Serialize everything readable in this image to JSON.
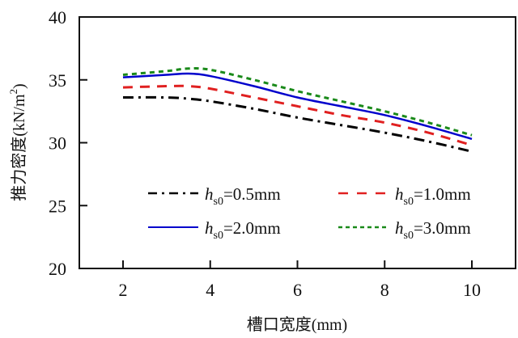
{
  "chart_data": {
    "type": "line",
    "title": "",
    "xlabel": "槽口宽度(mm)",
    "ylabel": "推力密度(kN/m²)",
    "ylabel_main": "推力密度(kN/m",
    "ylabel_sup": "2",
    "ylabel_close": ")",
    "xlim": [
      1.0,
      11.0
    ],
    "ylim": [
      20,
      40
    ],
    "xticks": [
      2,
      4,
      6,
      8,
      10
    ],
    "yticks": [
      20,
      25,
      30,
      35,
      40
    ],
    "grid": false,
    "legend_position": "inside-lower-center",
    "x": [
      2,
      3,
      3.5,
      4,
      5,
      6,
      7,
      8,
      9,
      10
    ],
    "series": [
      {
        "name": "hs0=0.5mm",
        "label_h": "h",
        "label_sub": "s0",
        "label_rest": "=0.5mm",
        "color": "#000000",
        "style": "dashdot",
        "values": [
          33.6,
          33.6,
          33.5,
          33.3,
          32.7,
          32.0,
          31.4,
          30.8,
          30.1,
          29.3
        ]
      },
      {
        "name": "hs0=1.0mm",
        "label_h": "h",
        "label_sub": "s0",
        "label_rest": "=1.0mm",
        "color": "#e02020",
        "style": "dashed",
        "values": [
          34.4,
          34.5,
          34.5,
          34.3,
          33.6,
          32.9,
          32.2,
          31.6,
          30.8,
          29.8
        ]
      },
      {
        "name": "hs0=2.0mm",
        "label_h": "h",
        "label_sub": "s0",
        "label_rest": "=2.0mm",
        "color": "#0000cc",
        "style": "solid",
        "values": [
          35.2,
          35.4,
          35.5,
          35.3,
          34.5,
          33.6,
          32.9,
          32.2,
          31.3,
          30.3
        ]
      },
      {
        "name": "hs0=3.0mm",
        "label_h": "h",
        "label_sub": "s0",
        "label_rest": "=3.0mm",
        "color": "#1a8a1a",
        "style": "dotted",
        "values": [
          35.4,
          35.7,
          35.9,
          35.8,
          35.0,
          34.1,
          33.3,
          32.5,
          31.6,
          30.6
        ]
      }
    ]
  }
}
